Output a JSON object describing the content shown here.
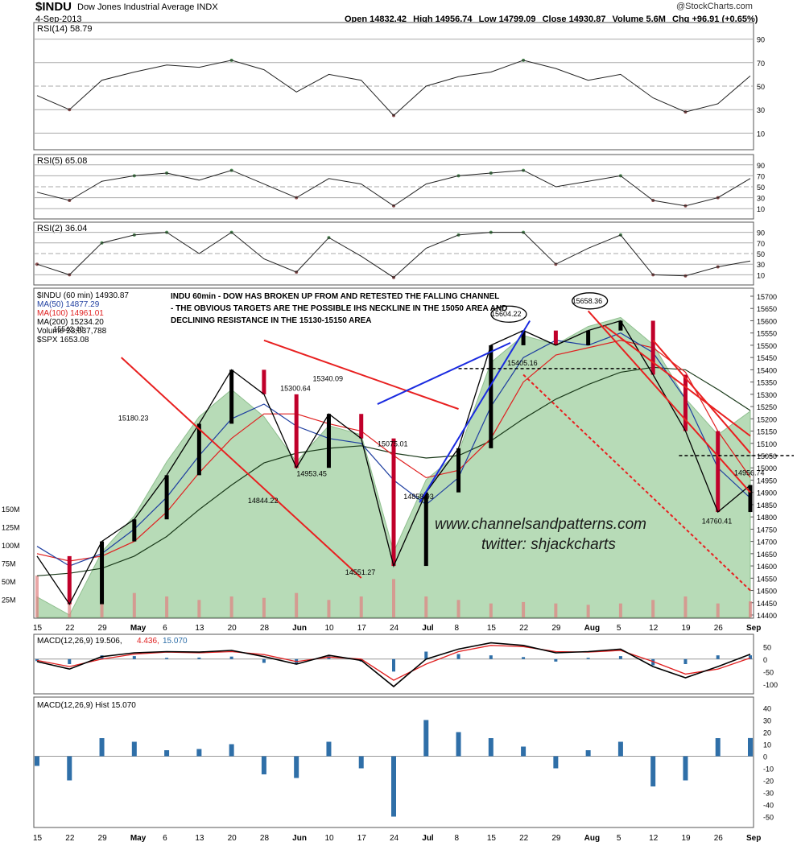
{
  "header": {
    "symbol": "$INDU",
    "name": "Dow Jones Industrial Average INDX",
    "date": "4-Sep-2013",
    "open": "Open 14832.42",
    "high": "High 14956.74",
    "low": "Low 14799.09",
    "close": "Close 14930.87",
    "volume": "Volume 5.6M",
    "chg": "Chg +96.91 (+0.65%)",
    "brand": "@StockCharts.com"
  },
  "colors": {
    "price_up": "#000000",
    "price_down": "#c0002a",
    "ma50": "#1f3fa0",
    "ma100": "#e02020",
    "ma200": "#1a3a1a",
    "spx_fill": "#9fcf9f",
    "volume_bars": "#e08080",
    "trend_red": "#e82020",
    "trend_blue": "#1a2be0",
    "rsi_green": "#4f8a55",
    "rsi_red": "#8a4f4f",
    "macd_hist": "#2f6fa8",
    "signal": "#e02020",
    "watermark": "#1a1a1a"
  },
  "panels": {
    "rsi14": {
      "label": "RSI(14) 58.79",
      "ticks": [
        "90",
        "70",
        "50",
        "30",
        "10"
      ]
    },
    "rsi5": {
      "label": "RSI(5) 65.08",
      "ticks": [
        "90",
        "70",
        "50",
        "30",
        "10"
      ]
    },
    "rsi2": {
      "label": "RSI(2) 36.04",
      "ticks": [
        "90",
        "70",
        "50",
        "30",
        "10"
      ]
    },
    "price": {
      "legend": [
        "$INDU (60 min) 14930.87",
        "MA(50) 14877.29",
        "MA(100) 14961.01",
        "MA(200) 15234.20",
        "Volume 23,037,788",
        "$SPX 1653.08"
      ],
      "ticks": [
        "15700",
        "15650",
        "15600",
        "15550",
        "15500",
        "15450",
        "15400",
        "15350",
        "15300",
        "15250",
        "15200",
        "15150",
        "15100",
        "15050",
        "15000",
        "14950",
        "14900",
        "14850",
        "14800",
        "14750",
        "14700",
        "14650",
        "14600",
        "14550",
        "14500",
        "14450",
        "14400"
      ],
      "volume_ticks": [
        "150M",
        "125M",
        "100M",
        "75M",
        "50M",
        "25M"
      ],
      "annotation": [
        "INDU 60min - DOW HAS BROKEN UP FROM AND RETESTED THE FALLING CHANNEL",
        "- THE OBVIOUS TARGETS ARE THE POSSIBLE IHS NECKLINE IN THE 15050 AREA AND",
        "DECLINING RESISTANCE IN THE 15130-15150 AREA"
      ],
      "watermark": [
        "www.channelsandpatterns.com",
        "twitter: shjackcharts"
      ],
      "price_labels": [
        {
          "text": "15542.40",
          "x": 1,
          "y": 15542
        },
        {
          "text": "15180.23",
          "x": 3,
          "y": 15180
        },
        {
          "text": "15300.64",
          "x": 8,
          "y": 15301
        },
        {
          "text": "15340.09",
          "x": 9,
          "y": 15340
        },
        {
          "text": "14844.22",
          "x": 7,
          "y": 14844
        },
        {
          "text": "14953.45",
          "x": 8.5,
          "y": 14953
        },
        {
          "text": "15075.01",
          "x": 11,
          "y": 15075
        },
        {
          "text": "14551.27",
          "x": 10,
          "y": 14551
        },
        {
          "text": "14858.93",
          "x": 11.8,
          "y": 14859
        },
        {
          "text": "15604.22",
          "x": 14.5,
          "y": 15604
        },
        {
          "text": "15405.16",
          "x": 15,
          "y": 15405
        },
        {
          "text": "15658.36",
          "x": 17,
          "y": 15658
        },
        {
          "text": "14956.74",
          "x": 22,
          "y": 14957
        },
        {
          "text": "14760.41",
          "x": 21,
          "y": 14760
        }
      ]
    },
    "macd": {
      "label_prefix": "MACD(12,26,9) 19.506,",
      "label_signal": "4.436,",
      "label_hist": "15.070",
      "ticks": [
        "50",
        "0",
        "-50",
        "-100"
      ]
    },
    "hist": {
      "label": "MACD(12,26,9) Hist 15.070",
      "ticks": [
        "40",
        "30",
        "20",
        "10",
        "0",
        "-10",
        "-20",
        "-30",
        "-40",
        "-50"
      ]
    }
  },
  "xaxis": [
    "15",
    "22",
    "29",
    "May",
    "6",
    "13",
    "20",
    "28",
    "Jun",
    "10",
    "17",
    "24",
    "Jul",
    "8",
    "15",
    "22",
    "29",
    "Aug",
    "5",
    "12",
    "19",
    "26",
    "Sep"
  ],
  "chart_data": {
    "type": "line",
    "title": "$INDU Dow Jones Industrial Average INDX",
    "xlabel": "",
    "ylabel": "",
    "ylim": [
      14400,
      15700
    ],
    "categories": [
      "15",
      "22",
      "29",
      "May",
      "6",
      "13",
      "20",
      "28",
      "Jun",
      "10",
      "17",
      "24",
      "Jul",
      "8",
      "15",
      "22",
      "29",
      "Aug",
      "5",
      "12",
      "19",
      "26",
      "Sep"
    ],
    "series": [
      {
        "name": "$INDU (60 min) 14930.87",
        "values": [
          14640,
          14444,
          14700,
          14790,
          14970,
          15180,
          15400,
          15300,
          15000,
          15220,
          15120,
          14600,
          14900,
          15080,
          15500,
          15560,
          15500,
          15560,
          15600,
          15380,
          15150,
          14820,
          14930
        ]
      },
      {
        "name": "MA(50) 14877.29",
        "values": [
          14680,
          14600,
          14650,
          14750,
          14880,
          15050,
          15200,
          15260,
          15170,
          15120,
          15100,
          14950,
          14850,
          14960,
          15250,
          15450,
          15520,
          15500,
          15550,
          15470,
          15280,
          15000,
          14877
        ]
      },
      {
        "name": "MA(100) 14961.01",
        "values": [
          14650,
          14620,
          14640,
          14700,
          14820,
          14980,
          15120,
          15220,
          15220,
          15180,
          15150,
          15050,
          14960,
          14990,
          15120,
          15350,
          15460,
          15490,
          15520,
          15490,
          15390,
          15150,
          14961
        ]
      },
      {
        "name": "MA(200) 15234.20",
        "values": [
          14560,
          14570,
          14590,
          14640,
          14720,
          14830,
          14930,
          15020,
          15060,
          15080,
          15090,
          15060,
          15040,
          15050,
          15110,
          15200,
          15280,
          15340,
          15390,
          15410,
          15400,
          15320,
          15234
        ]
      },
      {
        "name": "$SPX 1653.08",
        "values": [
          1550,
          1540,
          1575,
          1595,
          1625,
          1650,
          1665,
          1650,
          1625,
          1645,
          1640,
          1575,
          1615,
          1630,
          1680,
          1695,
          1690,
          1700,
          1705,
          1690,
          1660,
          1640,
          1653
        ]
      }
    ],
    "rsi14": [
      42,
      30,
      55,
      62,
      68,
      66,
      72,
      64,
      45,
      60,
      55,
      25,
      50,
      58,
      62,
      72,
      65,
      55,
      60,
      40,
      28,
      35,
      58.79
    ],
    "rsi5": [
      40,
      25,
      60,
      70,
      75,
      62,
      80,
      55,
      30,
      65,
      55,
      15,
      55,
      70,
      75,
      80,
      50,
      60,
      70,
      25,
      15,
      30,
      65.08
    ],
    "rsi2": [
      30,
      10,
      70,
      85,
      90,
      50,
      90,
      40,
      15,
      80,
      45,
      5,
      60,
      85,
      90,
      90,
      30,
      60,
      85,
      10,
      8,
      25,
      36.04
    ],
    "macd": [
      -10,
      -40,
      10,
      25,
      30,
      28,
      35,
      10,
      -20,
      15,
      -5,
      -110,
      0,
      40,
      65,
      55,
      25,
      30,
      40,
      -30,
      -75,
      -30,
      19.506
    ],
    "signal": [
      -5,
      -30,
      0,
      20,
      28,
      25,
      30,
      18,
      -10,
      8,
      0,
      -85,
      -20,
      30,
      55,
      50,
      30,
      28,
      35,
      -10,
      -60,
      -40,
      4.436
    ],
    "histogram": [
      -8,
      -20,
      15,
      12,
      5,
      6,
      10,
      -15,
      -18,
      12,
      -10,
      -50,
      30,
      20,
      15,
      8,
      -10,
      5,
      12,
      -25,
      -20,
      15,
      15.07
    ],
    "volume": [
      60,
      80,
      40,
      35,
      30,
      25,
      30,
      28,
      35,
      25,
      30,
      55,
      30,
      25,
      20,
      22,
      20,
      18,
      20,
      25,
      30,
      20,
      23
    ]
  }
}
